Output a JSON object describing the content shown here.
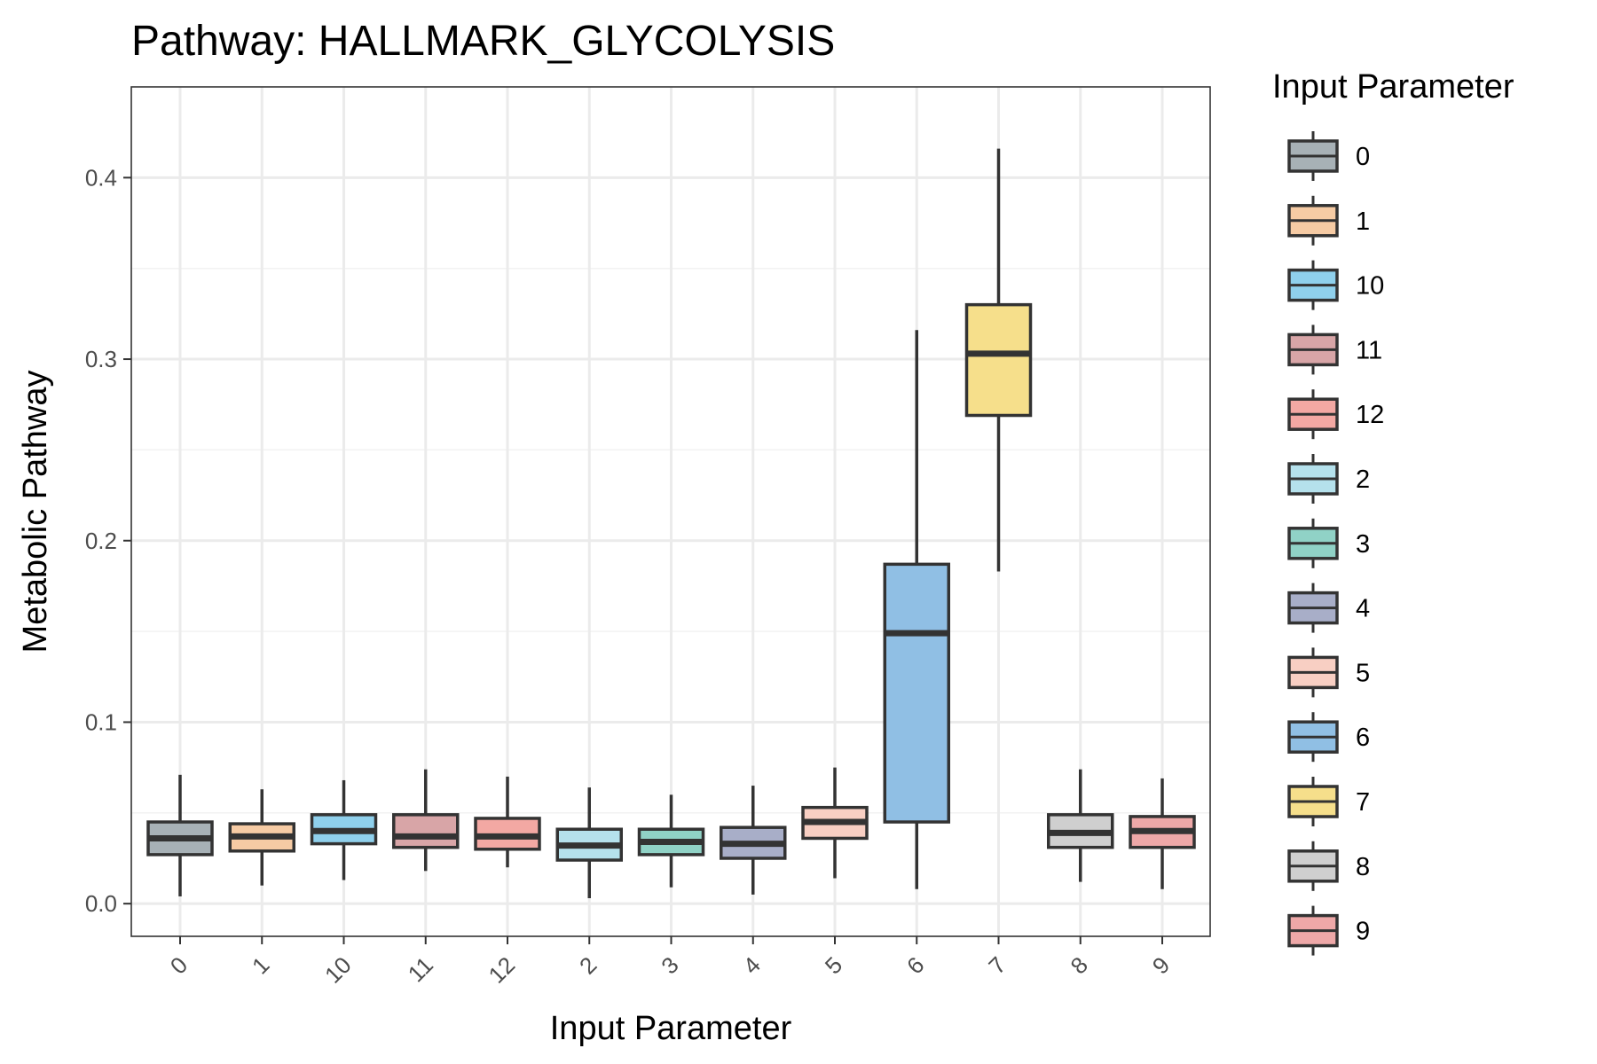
{
  "chart_data": {
    "type": "boxplot",
    "title": "Pathway: HALLMARK_GLYCOLYSIS",
    "xlabel": "Input Parameter",
    "ylabel": "Metabolic Pathway",
    "ylim": [
      -0.018,
      0.45
    ],
    "yticks": [
      "0.0",
      "0.1",
      "0.2",
      "0.3",
      "0.4"
    ],
    "grid": true,
    "legend_title": "Input Parameter",
    "legend_position": "right",
    "categories": [
      "0",
      "1",
      "10",
      "11",
      "12",
      "2",
      "3",
      "4",
      "5",
      "6",
      "7",
      "8",
      "9"
    ],
    "colors": [
      "#a7b1b6",
      "#f6cba4",
      "#8fd0ec",
      "#d8a5a7",
      "#f3a8a3",
      "#b5e1ec",
      "#90d2c6",
      "#a8aec8",
      "#f8cfc3",
      "#90bfe4",
      "#f6df8b",
      "#cfcfcf",
      "#eea8a8"
    ],
    "boxes": [
      {
        "category": "0",
        "whisker_low": 0.004,
        "q1": 0.027,
        "median": 0.036,
        "q3": 0.045,
        "whisker_high": 0.071
      },
      {
        "category": "1",
        "whisker_low": 0.01,
        "q1": 0.029,
        "median": 0.037,
        "q3": 0.044,
        "whisker_high": 0.063
      },
      {
        "category": "10",
        "whisker_low": 0.013,
        "q1": 0.033,
        "median": 0.04,
        "q3": 0.049,
        "whisker_high": 0.068
      },
      {
        "category": "11",
        "whisker_low": 0.018,
        "q1": 0.031,
        "median": 0.037,
        "q3": 0.049,
        "whisker_high": 0.074
      },
      {
        "category": "12",
        "whisker_low": 0.02,
        "q1": 0.03,
        "median": 0.037,
        "q3": 0.047,
        "whisker_high": 0.07
      },
      {
        "category": "2",
        "whisker_low": 0.003,
        "q1": 0.024,
        "median": 0.032,
        "q3": 0.041,
        "whisker_high": 0.064
      },
      {
        "category": "3",
        "whisker_low": 0.009,
        "q1": 0.027,
        "median": 0.034,
        "q3": 0.041,
        "whisker_high": 0.06
      },
      {
        "category": "4",
        "whisker_low": 0.005,
        "q1": 0.025,
        "median": 0.033,
        "q3": 0.042,
        "whisker_high": 0.065
      },
      {
        "category": "5",
        "whisker_low": 0.014,
        "q1": 0.036,
        "median": 0.045,
        "q3": 0.053,
        "whisker_high": 0.075
      },
      {
        "category": "6",
        "whisker_low": 0.008,
        "q1": 0.045,
        "median": 0.149,
        "q3": 0.187,
        "whisker_high": 0.316
      },
      {
        "category": "7",
        "whisker_low": 0.183,
        "q1": 0.269,
        "median": 0.303,
        "q3": 0.33,
        "whisker_high": 0.416
      },
      {
        "category": "8",
        "whisker_low": 0.012,
        "q1": 0.031,
        "median": 0.039,
        "q3": 0.049,
        "whisker_high": 0.074
      },
      {
        "category": "9",
        "whisker_low": 0.008,
        "q1": 0.031,
        "median": 0.04,
        "q3": 0.048,
        "whisker_high": 0.069
      }
    ]
  }
}
